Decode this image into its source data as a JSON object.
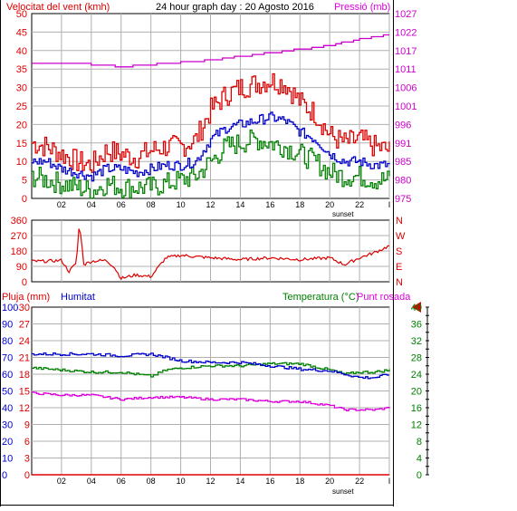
{
  "header": {
    "wind_label": "Velocitat del vent (kmh)",
    "graph_title": "24 hour graph day : 20 Agosto 2016",
    "pressure_label": "Pressió (mb)"
  },
  "bottom_header": {
    "rain_label": "Pluja (mm)",
    "humidity_label": "Humitat",
    "temperature_label": "Temperatura (°C)",
    "dewpoint_label": "Punt rosada"
  },
  "x_ticks": [
    "02",
    "04",
    "06",
    "08",
    "10",
    "12",
    "14",
    "16",
    "18",
    "20",
    "22",
    "I"
  ],
  "sunset_label": "sunset",
  "colors": {
    "wind_avg": "#0000cc",
    "wind_gust": "#dd0000",
    "wind_low": "#008000",
    "pressure": "#cc00cc",
    "direction": "#dd0000",
    "humidity": "#0000cc",
    "temperature": "#008000",
    "dewpoint": "#dd00dd",
    "rain": "#dd0000",
    "grid": "#b0b0b0"
  },
  "chart_data": [
    {
      "type": "line",
      "title": "24 hour graph day : 20 Agosto 2016",
      "x_unit": "hour",
      "xlim": [
        0,
        24
      ],
      "y_left_label": "Velocitat del vent (kmh)",
      "y_left_ticks": [
        0,
        5,
        10,
        15,
        20,
        25,
        30,
        35,
        40,
        45,
        50
      ],
      "ylim_left": [
        0,
        50
      ],
      "y_right_label": "Pressió (mb)",
      "y_right_ticks": [
        975,
        980,
        985,
        991,
        996,
        1001,
        1006,
        1011,
        1017,
        1022,
        1027
      ],
      "ylim_right": [
        975,
        1027
      ],
      "grid": true,
      "series": [
        {
          "name": "Velocitat del vent (kmh)",
          "axis": "left",
          "role": "gust",
          "x": [
            0,
            1,
            2,
            3,
            4,
            5,
            6,
            7,
            8,
            9,
            10,
            11,
            12,
            13,
            14,
            15,
            16,
            17,
            18,
            19,
            20,
            21,
            22,
            23,
            24
          ],
          "values": [
            15,
            14,
            12,
            10,
            9,
            13,
            12,
            11,
            13,
            14,
            14,
            16,
            24,
            28,
            30,
            31,
            32,
            31,
            26,
            23,
            17,
            15,
            16,
            14,
            13
          ]
        },
        {
          "name": "",
          "axis": "left",
          "role": "average",
          "x": [
            0,
            1,
            2,
            3,
            4,
            5,
            6,
            7,
            8,
            9,
            10,
            11,
            12,
            13,
            14,
            15,
            16,
            17,
            18,
            19,
            20,
            21,
            22,
            23,
            24
          ],
          "values": [
            10,
            10,
            8,
            7,
            6,
            8,
            8,
            7,
            8,
            9,
            9,
            10,
            16,
            19,
            20,
            21,
            22,
            21,
            18,
            16,
            12,
            10,
            10,
            9,
            9
          ]
        },
        {
          "name": "",
          "axis": "left",
          "role": "low",
          "x": [
            0,
            1,
            2,
            3,
            4,
            5,
            6,
            7,
            8,
            9,
            10,
            11,
            12,
            13,
            14,
            15,
            16,
            17,
            18,
            19,
            20,
            21,
            22,
            23,
            24
          ],
          "values": [
            6,
            5,
            4,
            3,
            2,
            4,
            3,
            3,
            3,
            4,
            5,
            6,
            10,
            14,
            15,
            16,
            15,
            14,
            12,
            10,
            7,
            6,
            6,
            5,
            5
          ]
        },
        {
          "name": "Pressió (mb)",
          "axis": "right",
          "x": [
            0,
            3,
            6,
            9,
            12,
            14,
            16,
            18,
            20,
            22,
            24
          ],
          "values": [
            1013,
            1013,
            1012,
            1013,
            1014,
            1015,
            1016,
            1017,
            1018,
            1020,
            1021
          ]
        }
      ]
    },
    {
      "type": "line",
      "x_unit": "hour",
      "xlim": [
        0,
        24
      ],
      "y_left_ticks": [
        0,
        90,
        180,
        270,
        360
      ],
      "ylim": [
        0,
        360
      ],
      "y_right_ticks": [
        "N",
        "W",
        "S",
        "E",
        "N"
      ],
      "grid": true,
      "series": [
        {
          "name": "",
          "x": [
            0,
            1,
            2,
            2.5,
            3,
            3.2,
            3.5,
            4,
            5,
            5.5,
            6,
            7,
            8,
            9,
            10,
            12,
            14,
            16,
            18,
            20,
            21,
            22,
            23,
            24
          ],
          "values": [
            120,
            120,
            125,
            60,
            110,
            350,
            100,
            120,
            125,
            90,
            20,
            40,
            30,
            140,
            155,
            140,
            130,
            140,
            130,
            140,
            100,
            140,
            170,
            210
          ]
        }
      ]
    },
    {
      "type": "line",
      "x_unit": "hour",
      "xlim": [
        0,
        24
      ],
      "y_left_label": "Pluja (mm)",
      "y_left_ticks_rain": [
        0,
        3,
        6,
        9,
        12,
        15,
        18,
        21,
        24,
        27,
        30
      ],
      "y_left_ticks_humidity": [
        0,
        10,
        20,
        30,
        40,
        50,
        60,
        70,
        80,
        90,
        100
      ],
      "y_right_label": "Temperatura (°C)",
      "y_right_ticks": [
        0,
        4,
        8,
        12,
        16,
        20,
        24,
        28,
        32,
        36,
        40
      ],
      "ylim_right": [
        0,
        40
      ],
      "grid": true,
      "series": [
        {
          "name": "Humitat",
          "axis": "humidity",
          "x": [
            0,
            2,
            4,
            6,
            8,
            9,
            10,
            12,
            14,
            16,
            18,
            20,
            21,
            22,
            23,
            24
          ],
          "values": [
            72,
            72,
            72,
            71,
            72,
            70,
            68,
            67,
            67,
            65,
            63,
            62,
            60,
            58,
            58,
            60
          ]
        },
        {
          "name": "Temperatura (°C)",
          "axis": "temperature",
          "x": [
            0,
            2,
            4,
            6,
            8,
            9,
            10,
            12,
            14,
            16,
            18,
            20,
            21,
            22,
            23,
            24
          ],
          "values": [
            25.5,
            25.0,
            24.5,
            24.5,
            23.5,
            25.0,
            25.5,
            26.0,
            26.0,
            26.5,
            26.5,
            25.0,
            24.0,
            24.5,
            24.5,
            25.0
          ]
        },
        {
          "name": "Punt rosada",
          "axis": "temperature",
          "x": [
            0,
            2,
            4,
            6,
            8,
            10,
            12,
            14,
            16,
            18,
            20,
            21,
            22,
            23,
            24
          ],
          "values": [
            19.5,
            19.0,
            19.0,
            18.0,
            18.5,
            18.5,
            18.0,
            18.0,
            17.5,
            17.5,
            16.5,
            15.5,
            15.5,
            15.5,
            16.0
          ]
        },
        {
          "name": "Pluja (mm)",
          "axis": "rain",
          "x": [
            0,
            24
          ],
          "values": [
            0,
            0
          ]
        }
      ]
    }
  ]
}
